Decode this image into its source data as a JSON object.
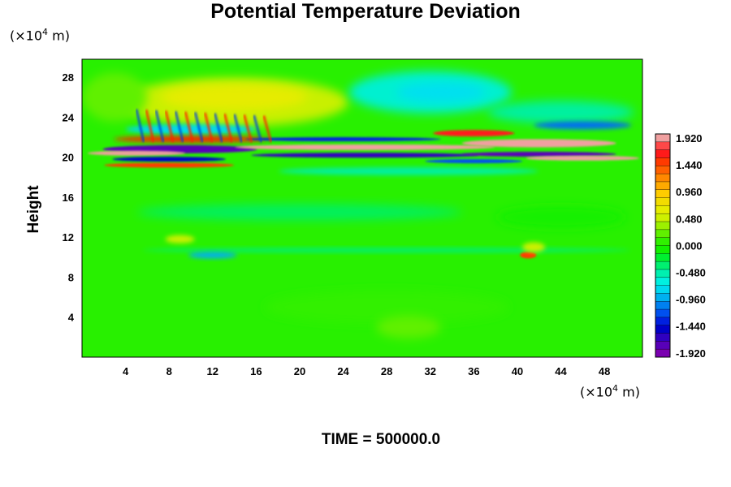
{
  "chart_data": {
    "type": "heatmap",
    "title": "Potential Temperature Deviation",
    "xlabel": "",
    "ylabel": "Height",
    "x_unit_label": "(×10⁴ m)",
    "y_unit_label": "(×10⁴ m)",
    "footer": "TIME = 500000.0",
    "xlim": [
      0,
      51.5
    ],
    "ylim": [
      0,
      29.8
    ],
    "xticks": [
      4,
      8,
      12,
      16,
      20,
      24,
      28,
      32,
      36,
      40,
      44,
      48
    ],
    "yticks": [
      4,
      8,
      12,
      16,
      20,
      24,
      28
    ],
    "colorbar": {
      "min": -1.92,
      "max": 1.92,
      "labels": [
        "1.920",
        "1.440",
        "0.960",
        "0.480",
        "0.000",
        "-0.480",
        "-0.960",
        "-1.440",
        "-1.920"
      ]
    }
  }
}
